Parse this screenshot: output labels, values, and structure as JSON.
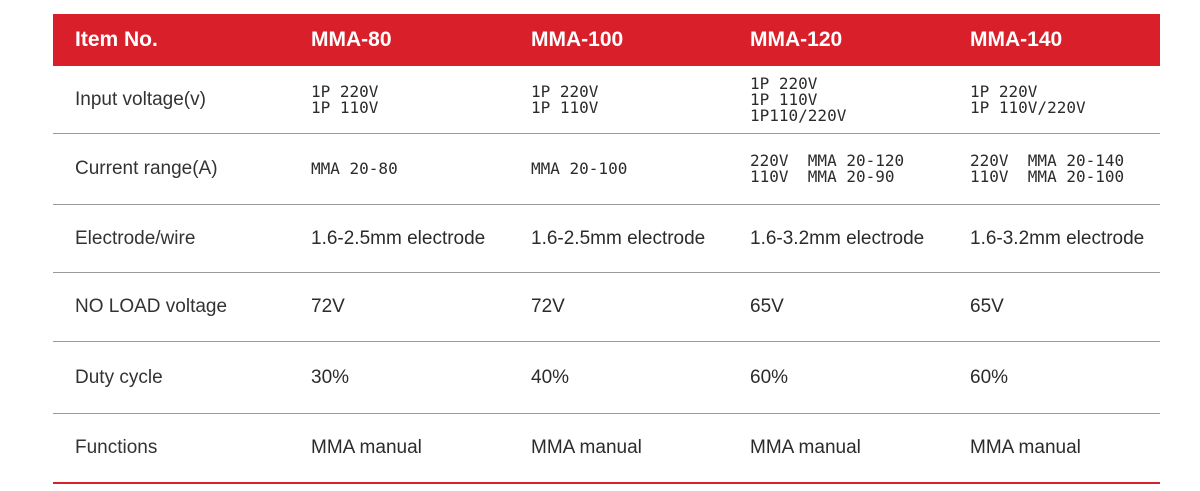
{
  "table": {
    "headers": [
      "Item No.",
      "MMA-80",
      "MMA-100",
      "MMA-120",
      "MMA-140"
    ],
    "rows": [
      {
        "label": "Input voltage(v)",
        "values": [
          [
            "1P 220V",
            "1P 110V"
          ],
          [
            "1P 220V",
            "1P 110V"
          ],
          [
            "1P 220V",
            "1P 110V",
            "1P110/220V"
          ],
          [
            "1P 220V",
            "1P 110V/220V"
          ]
        ]
      },
      {
        "label": "Current range(A)",
        "values": [
          [
            "MMA 20-80"
          ],
          [
            "MMA 20-100"
          ],
          [
            "220V  MMA 20-120",
            "110V  MMA 20-90"
          ],
          [
            "220V  MMA 20-140",
            "110V  MMA 20-100"
          ]
        ]
      },
      {
        "label": "Electrode/wire",
        "values": [
          [
            "1.6-2.5mm electrode"
          ],
          [
            "1.6-2.5mm electrode"
          ],
          [
            "1.6-3.2mm electrode"
          ],
          [
            "1.6-3.2mm electrode"
          ]
        ]
      },
      {
        "label": "NO LOAD voltage",
        "values": [
          [
            "72V"
          ],
          [
            "72V"
          ],
          [
            "65V"
          ],
          [
            "65V"
          ]
        ]
      },
      {
        "label": "Duty cycle",
        "values": [
          [
            "30%"
          ],
          [
            "40%"
          ],
          [
            "60%"
          ],
          [
            "60%"
          ]
        ]
      },
      {
        "label": "Functions",
        "values": [
          [
            "MMA manual"
          ],
          [
            "MMA manual"
          ],
          [
            "MMA manual"
          ],
          [
            "MMA manual"
          ]
        ]
      }
    ]
  }
}
